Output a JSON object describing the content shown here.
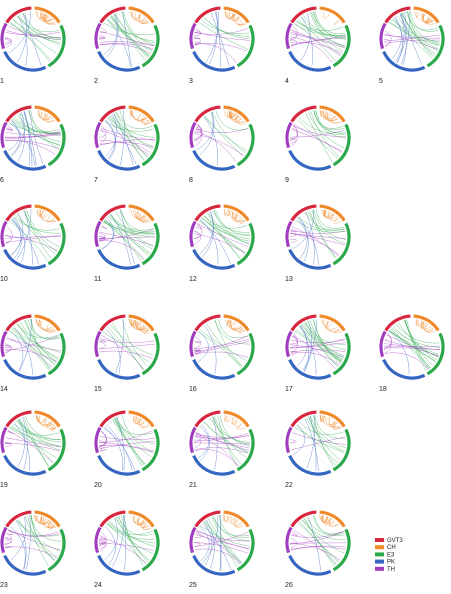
{
  "figure": {
    "panels": [
      {
        "label": "1"
      },
      {
        "label": "2"
      },
      {
        "label": "3"
      },
      {
        "label": "4"
      },
      {
        "label": "5"
      },
      {
        "label": "6"
      },
      {
        "label": "7"
      },
      {
        "label": "8"
      },
      {
        "label": "9"
      },
      {
        "label": "10"
      },
      {
        "label": "11"
      },
      {
        "label": "12"
      },
      {
        "label": "13"
      },
      {
        "label": "14"
      },
      {
        "label": "15"
      },
      {
        "label": "16"
      },
      {
        "label": "17"
      },
      {
        "label": "18"
      },
      {
        "label": "19"
      },
      {
        "label": "20"
      },
      {
        "label": "21"
      },
      {
        "label": "22"
      },
      {
        "label": "23"
      },
      {
        "label": "24"
      },
      {
        "label": "25"
      },
      {
        "label": "26"
      }
    ],
    "rows": [
      5,
      4,
      4,
      5,
      4,
      4
    ],
    "legend": [
      {
        "label": "GVT3",
        "color": "#d7263d"
      },
      {
        "label": "CH",
        "color": "#f0892a"
      },
      {
        "label": "E3",
        "color": "#2aa84a"
      },
      {
        "label": "PK",
        "color": "#3465c0"
      },
      {
        "label": "TH",
        "color": "#a23cbf"
      }
    ]
  }
}
